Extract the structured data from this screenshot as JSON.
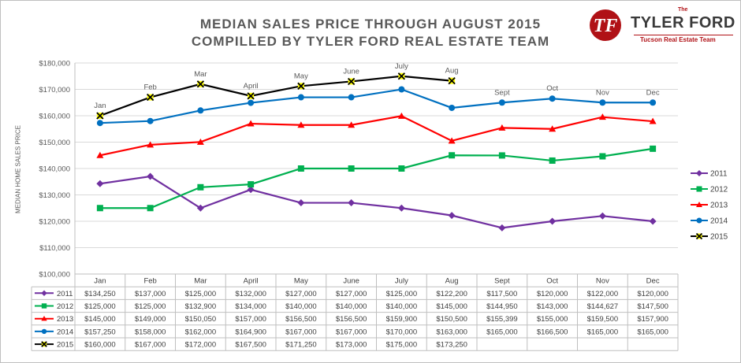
{
  "header": {
    "title_line1": "MEDIAN SALES PRICE THROUGH AUGUST  2015",
    "title_line2": "COMPILLED BY TYLER FORD REAL ESTATE TEAM"
  },
  "logo": {
    "monogram": "TF",
    "the": "The",
    "name": "TYLER FORD",
    "tagline": "Tucson Real Estate Team"
  },
  "colors": {
    "2011": "#7030a0",
    "2012": "#00b050",
    "2013": "#ff0000",
    "2014": "#0070c0",
    "2015": "#000000",
    "marker_2015": "#ffff00",
    "brand_red": "#b01116",
    "grid": "#d9d9d9"
  },
  "chart_data": {
    "type": "line",
    "title": "MEDIAN SALES PRICE THROUGH AUGUST  2015",
    "subtitle": "COMPILLED BY TYLER FORD REAL ESTATE TEAM",
    "xlabel": "",
    "ylabel": "MEDIAN HOME SALES PRICE",
    "ylim": [
      100000,
      180000
    ],
    "yticks": [
      100000,
      110000,
      120000,
      130000,
      140000,
      150000,
      160000,
      170000,
      180000
    ],
    "ytick_labels": [
      "$100,000",
      "$110,000",
      "$120,000",
      "$130,000",
      "$140,000",
      "$150,000",
      "$160,000",
      "$170,000",
      "$180,000"
    ],
    "categories": [
      "Jan",
      "Feb",
      "Mar",
      "April",
      "May",
      "June",
      "July",
      "Aug",
      "Sept",
      "Oct",
      "Nov",
      "Dec"
    ],
    "grid": true,
    "legend_position": "right",
    "series": [
      {
        "name": "2011",
        "marker": "diamond",
        "values": [
          134250,
          137000,
          125000,
          132000,
          127000,
          127000,
          125000,
          122200,
          117500,
          120000,
          122000,
          120000
        ],
        "table": [
          "$134,250",
          "$137,000",
          "$125,000",
          "$132,000",
          "$127,000",
          "$127,000",
          "$125,000",
          "$122,200",
          "$117,500",
          "$120,000",
          "$122,000",
          "$120,000"
        ]
      },
      {
        "name": "2012",
        "marker": "square",
        "values": [
          125000,
          125000,
          132900,
          134000,
          140000,
          140000,
          140000,
          145000,
          144950,
          143000,
          144627,
          147500
        ],
        "table": [
          "$125,000",
          "$125,000",
          "$132,900",
          "$134,000",
          "$140,000",
          "$140,000",
          "$140,000",
          "$145,000",
          "$144,950",
          "$143,000",
          "$144,627",
          "$147,500"
        ]
      },
      {
        "name": "2013",
        "marker": "triangle",
        "values": [
          145000,
          149000,
          150050,
          157000,
          156500,
          156500,
          159900,
          150500,
          155399,
          155000,
          159500,
          157900
        ],
        "table": [
          "$145,000",
          "$149,000",
          "$150,050",
          "$157,000",
          "$156,500",
          "$156,500",
          "$159,900",
          "$150,500",
          "$155,399",
          "$155,000",
          "$159,500",
          "$157,900"
        ]
      },
      {
        "name": "2014",
        "marker": "circle",
        "values": [
          157250,
          158000,
          162000,
          164900,
          167000,
          167000,
          170000,
          163000,
          165000,
          166500,
          165000,
          165000
        ],
        "table": [
          "$157,250",
          "$158,000",
          "$162,000",
          "$164,900",
          "$167,000",
          "$167,000",
          "$170,000",
          "$163,000",
          "$165,000",
          "$166,500",
          "$165,000",
          "$165,000"
        ]
      },
      {
        "name": "2015",
        "marker": "x",
        "values": [
          160000,
          167000,
          172000,
          167500,
          171250,
          173000,
          175000,
          173250,
          null,
          null,
          null,
          null
        ],
        "table": [
          "$160,000",
          "$167,000",
          "$172,000",
          "$167,500",
          "$171,250",
          "$173,000",
          "$175,000",
          "$173,250",
          "",
          "",
          "",
          ""
        ]
      }
    ],
    "annotations": [
      "Jan",
      "Feb",
      "Mar",
      "April",
      "May",
      "June",
      "July",
      "Aug",
      "Sept",
      "Oct",
      "Nov",
      "Dec"
    ]
  }
}
